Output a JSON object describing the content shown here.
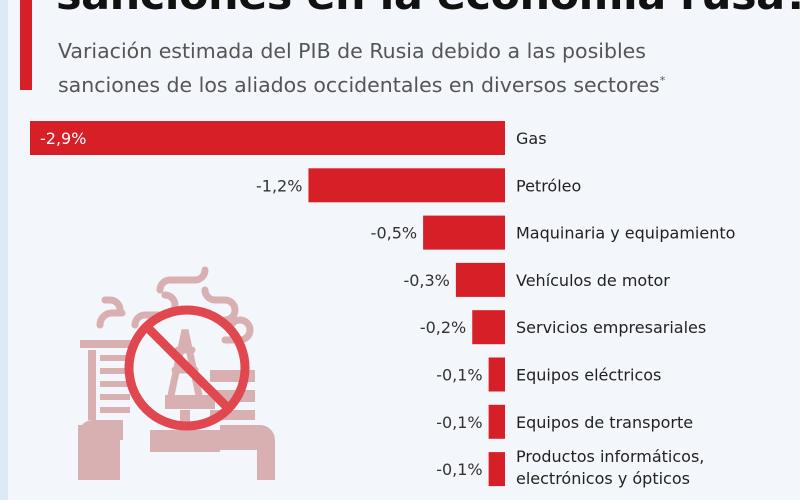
{
  "header": {
    "title": "sanciones en la economía rusa?",
    "subtitle_line1": "Variación estimada del PIB de Rusia debido a las posibles",
    "subtitle_line2": "sanciones de los aliados occidentales en diversos sectores",
    "footnote_mark": "*"
  },
  "colors": {
    "bar": "#d71f27",
    "accent": "#d71f27",
    "icon": "#d8b0b2"
  },
  "chart_data": {
    "type": "bar",
    "orientation": "horizontal",
    "categories": [
      "Gas",
      "Petróleo",
      "Maquinaria y equipamiento",
      "Vehículos de motor",
      "Servicios empresariales",
      "Equipos eléctricos",
      "Equipos de transporte",
      "Productos informáticos, electrónicos y ópticos"
    ],
    "values": [
      -2.9,
      -1.2,
      -0.5,
      -0.3,
      -0.2,
      -0.1,
      -0.1,
      -0.1
    ],
    "data_labels": [
      "-2,9%",
      "-1,2%",
      "-0,5%",
      "-0,3%",
      "-0,2%",
      "-0,1%",
      "-0,1%",
      "-0,1%"
    ],
    "unit": "%",
    "grid": false,
    "legend": "none"
  }
}
